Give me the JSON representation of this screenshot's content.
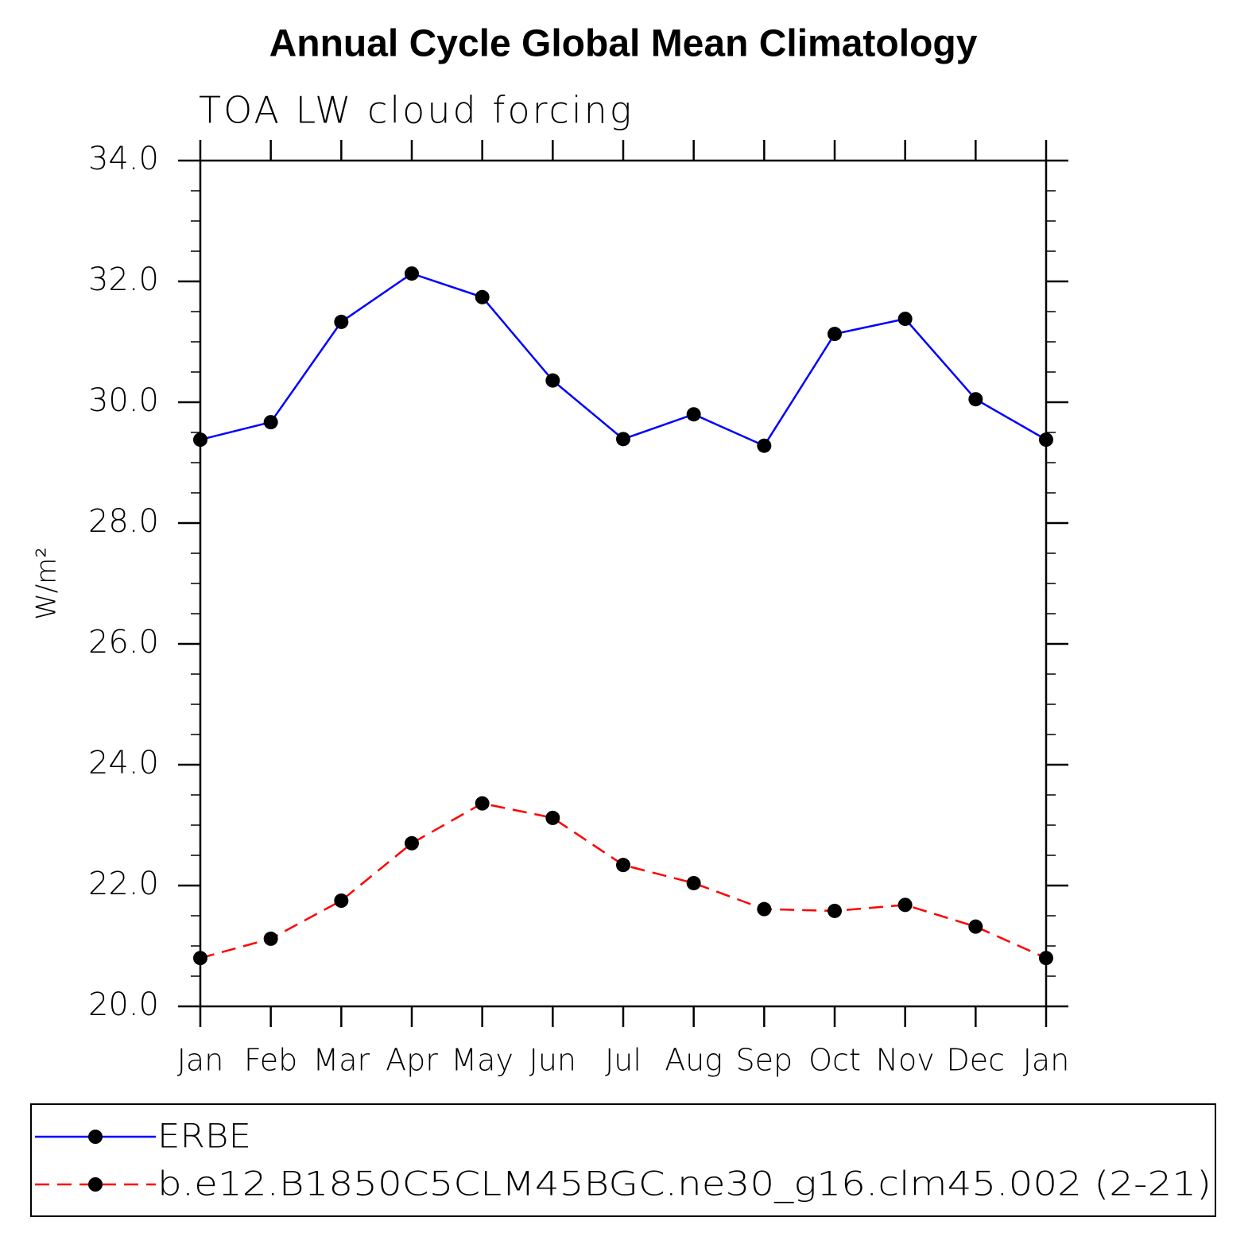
{
  "chart_data": {
    "type": "line",
    "title": "Annual Cycle Global Mean Climatology",
    "subtitle": "TOA LW cloud forcing",
    "y_label": "W/m²",
    "categories": [
      "Jan",
      "Feb",
      "Mar",
      "Apr",
      "May",
      "Jun",
      "Jul",
      "Aug",
      "Sep",
      "Oct",
      "Nov",
      "Dec",
      "Jan"
    ],
    "series": [
      {
        "name": "ERBE",
        "color": "#0000ff",
        "line_style": "solid",
        "values": [
          29.38,
          29.67,
          31.33,
          32.13,
          31.74,
          30.36,
          29.39,
          29.8,
          29.28,
          31.13,
          31.38,
          30.05,
          29.38
        ]
      },
      {
        "name": "b.e12.B1850C5CLM45BGC.ne30_g16.clm45.002 (2-21)",
        "color": "#ff0000",
        "line_style": "dashed",
        "values": [
          20.8,
          21.12,
          21.75,
          22.7,
          23.36,
          23.12,
          22.34,
          22.04,
          21.61,
          21.58,
          21.68,
          21.32,
          20.8
        ]
      }
    ],
    "ylim": [
      20,
      34
    ],
    "yticks": [
      {
        "value": 20,
        "label": "20.0"
      },
      {
        "value": 22,
        "label": "22.0"
      },
      {
        "value": 24,
        "label": "24.0"
      },
      {
        "value": 26,
        "label": "26.0"
      },
      {
        "value": 28,
        "label": "28.0"
      },
      {
        "value": 30,
        "label": "30.0"
      },
      {
        "value": 32,
        "label": "32.0"
      },
      {
        "value": 34,
        "label": "34.0"
      }
    ],
    "legend": "bottom",
    "marker_color": "#000000"
  }
}
